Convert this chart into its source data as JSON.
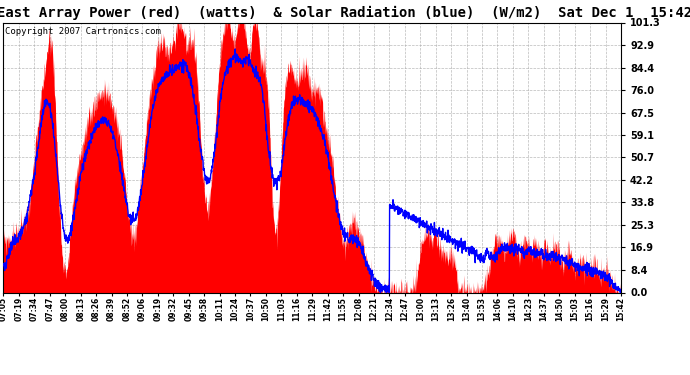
{
  "title": "East Array Power (red)  (watts)  & Solar Radiation (blue)  (W/m2)  Sat Dec 1  15:42",
  "copyright": "Copyright 2007 Cartronics.com",
  "yticks": [
    0.0,
    8.4,
    16.9,
    25.3,
    33.8,
    42.2,
    50.7,
    59.1,
    67.5,
    76.0,
    84.4,
    92.9,
    101.3
  ],
  "ylim": [
    0.0,
    101.3
  ],
  "bg_color": "#ffffff",
  "grid_color": "#aaaaaa",
  "red_color": "#ff0000",
  "blue_color": "#0000ff",
  "title_fontsize": 10,
  "copyright_fontsize": 6.5,
  "xtick_labels": [
    "07:05",
    "07:19",
    "07:34",
    "07:47",
    "08:00",
    "08:13",
    "08:26",
    "08:39",
    "08:52",
    "09:06",
    "09:19",
    "09:32",
    "09:45",
    "09:58",
    "10:11",
    "10:24",
    "10:37",
    "10:50",
    "11:03",
    "11:16",
    "11:29",
    "11:42",
    "11:55",
    "12:08",
    "12:21",
    "12:34",
    "12:47",
    "13:00",
    "13:13",
    "13:26",
    "13:40",
    "13:53",
    "14:06",
    "14:10",
    "14:23",
    "14:37",
    "14:50",
    "15:03",
    "15:16",
    "15:29",
    "15:42"
  ],
  "n_xticks": 41,
  "seed": 99,
  "noise_std_red": 2.5,
  "noise_std_blue": 1.0
}
